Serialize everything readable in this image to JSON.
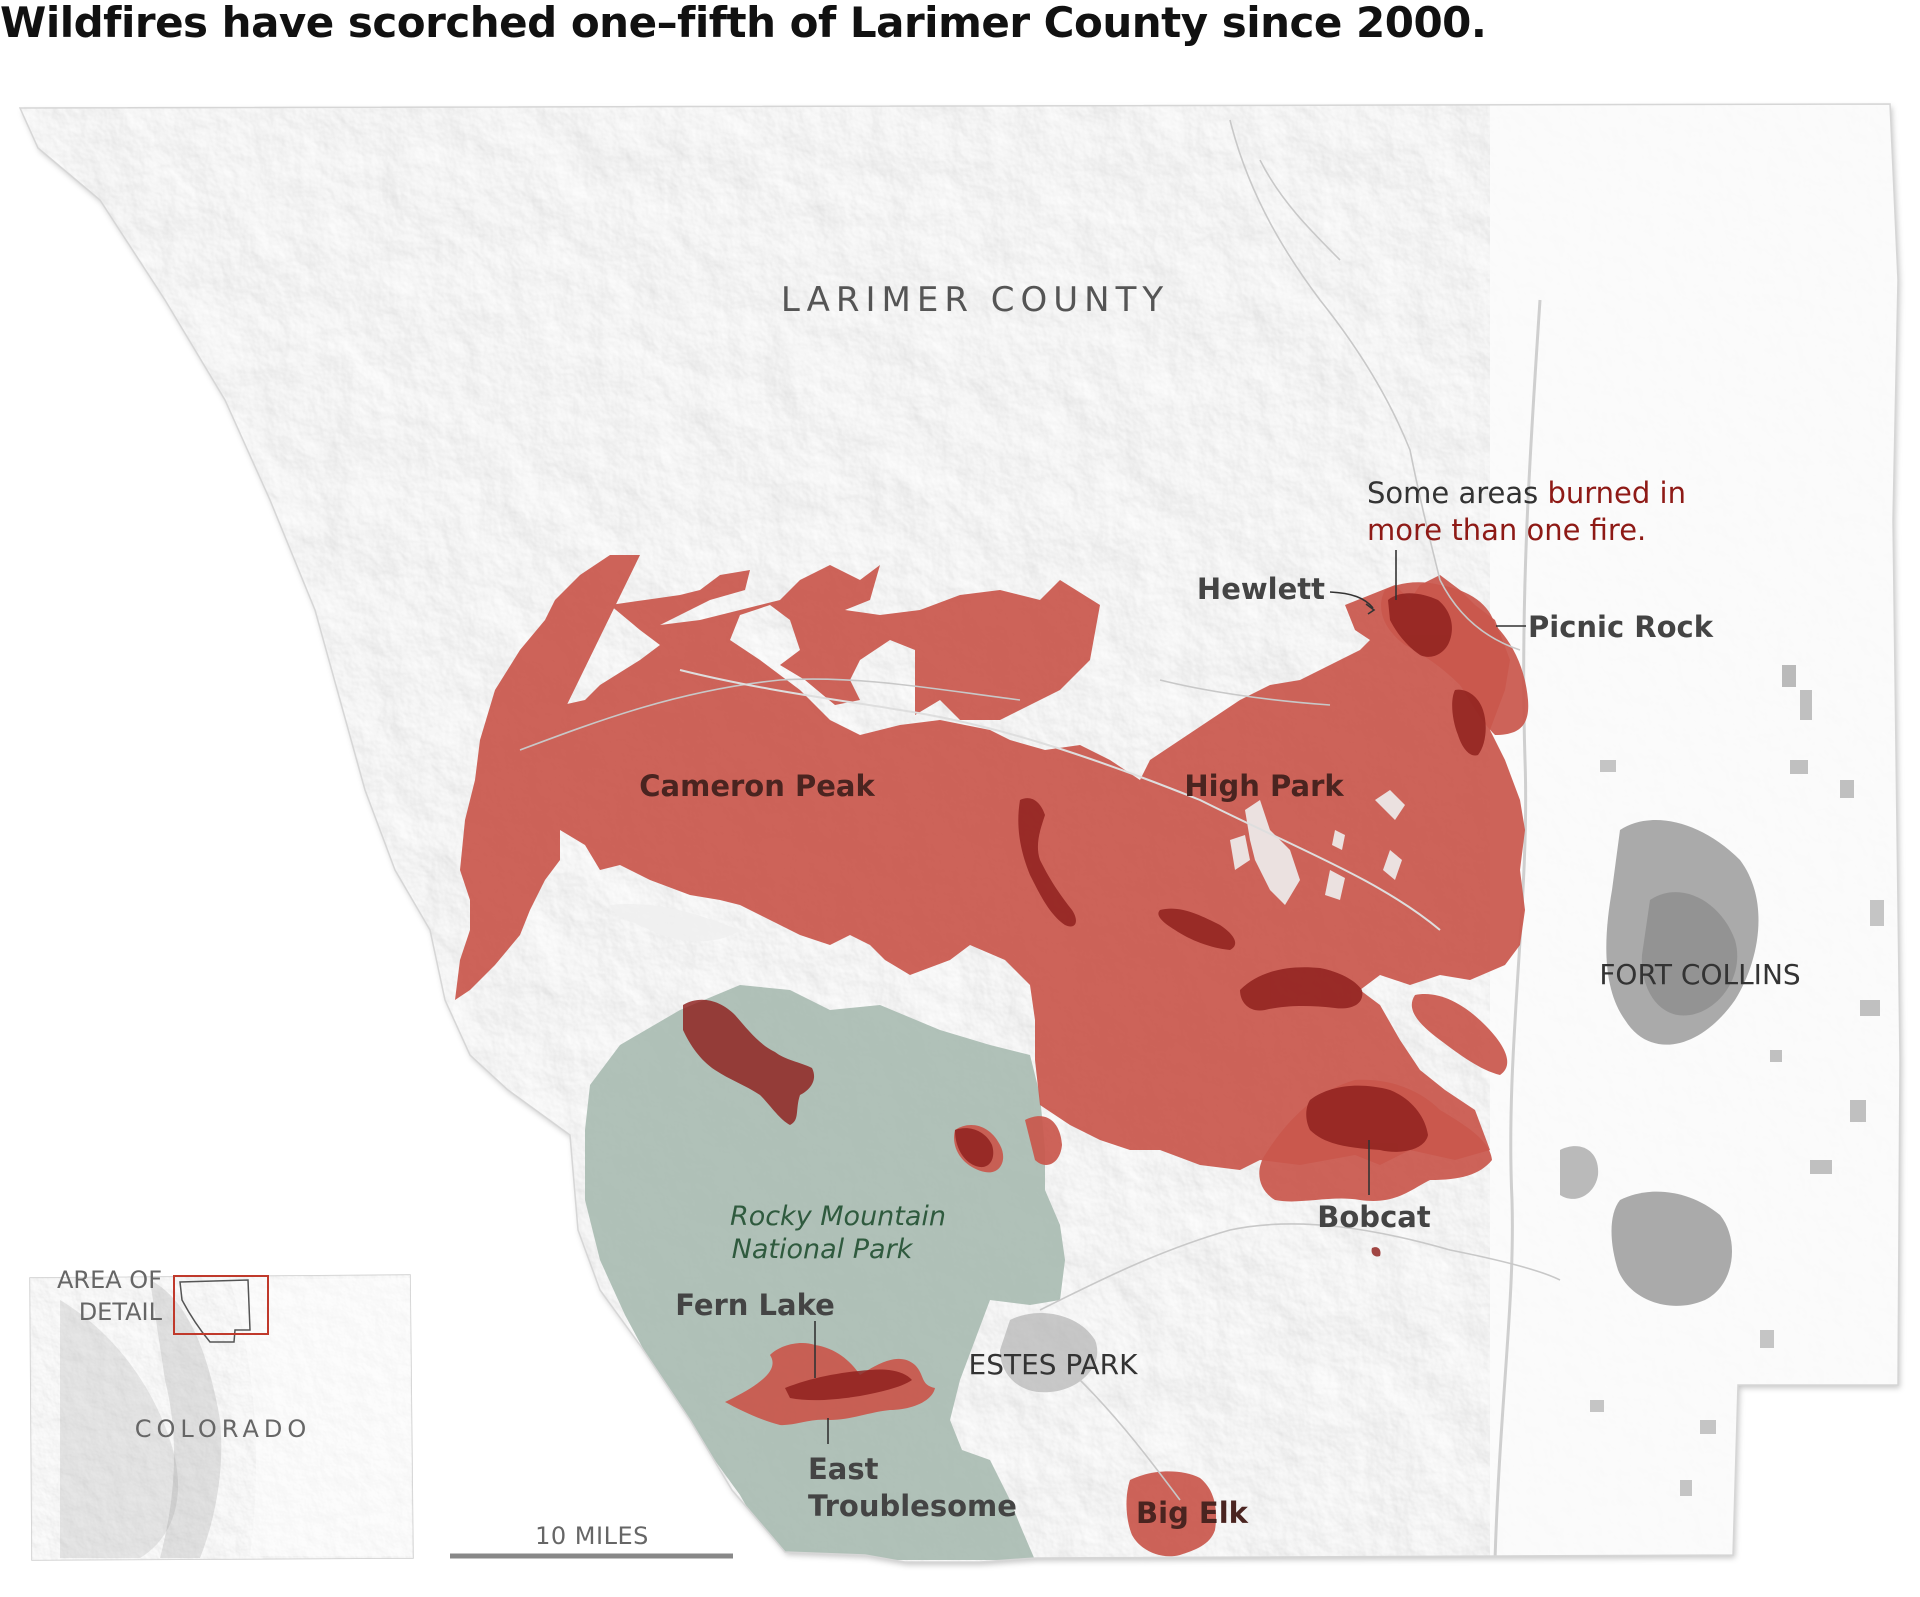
{
  "title": "Wildfires have scorched one–fifth of Larimer County since 2000.",
  "colors": {
    "fire": "#c9574c",
    "fire_overlap": "#8e1f1c",
    "park": "#a9bcb2",
    "terrain": "#f2f2f2",
    "urban": "#8f8f8f",
    "annotation_red": "#8e1a16",
    "park_label": "#2f5a3e"
  },
  "county_label": "LARIMER COUNTY",
  "annotation": {
    "part1": "Some areas ",
    "part2": "burned in",
    "part3": "more than one fire."
  },
  "fires": {
    "hewlett": "Hewlett",
    "picnic_rock": "Picnic Rock",
    "cameron_peak": "Cameron Peak",
    "high_park": "High Park",
    "bobcat": "Bobcat",
    "fern_lake": "Fern Lake",
    "east_troublesome_1": "East",
    "east_troublesome_2": "Troublesome",
    "big_elk": "Big Elk"
  },
  "places": {
    "fort_collins": "FORT COLLINS",
    "estes_park": "ESTES PARK"
  },
  "park": {
    "line1": "Rocky Mountain",
    "line2": "National Park"
  },
  "inset": {
    "line1": "AREA OF",
    "line2": "DETAIL",
    "state": "COLORADO"
  },
  "scale_bar": {
    "label": "10 MILES",
    "miles": 10
  }
}
